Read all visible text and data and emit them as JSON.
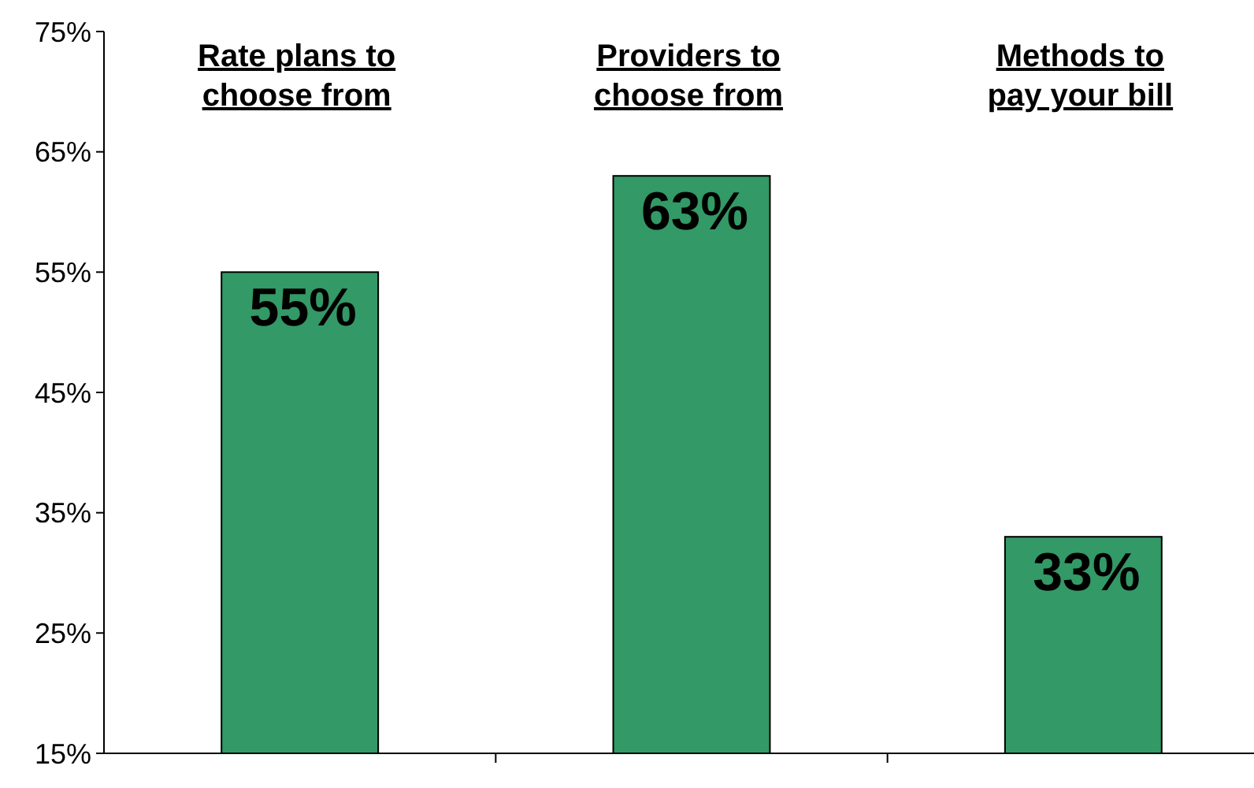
{
  "chart_data": {
    "type": "bar",
    "categories": [
      "Rate plans to choose from",
      "Providers to choose from",
      "Methods to pay your bill"
    ],
    "values": [
      55,
      63,
      33
    ],
    "color": "#339966",
    "data_labels": true,
    "value_labels": [
      "55%",
      "63%",
      "33%"
    ],
    "ylim": [
      15,
      75
    ],
    "yticks": [
      {
        "value": 15,
        "label": "15%"
      },
      {
        "value": 25,
        "label": "25%"
      },
      {
        "value": 35,
        "label": "35%"
      },
      {
        "value": 45,
        "label": "45%"
      },
      {
        "value": 55,
        "label": "55%"
      },
      {
        "value": 65,
        "label": "65%"
      },
      {
        "value": 75,
        "label": "75%"
      }
    ],
    "grid": false
  }
}
